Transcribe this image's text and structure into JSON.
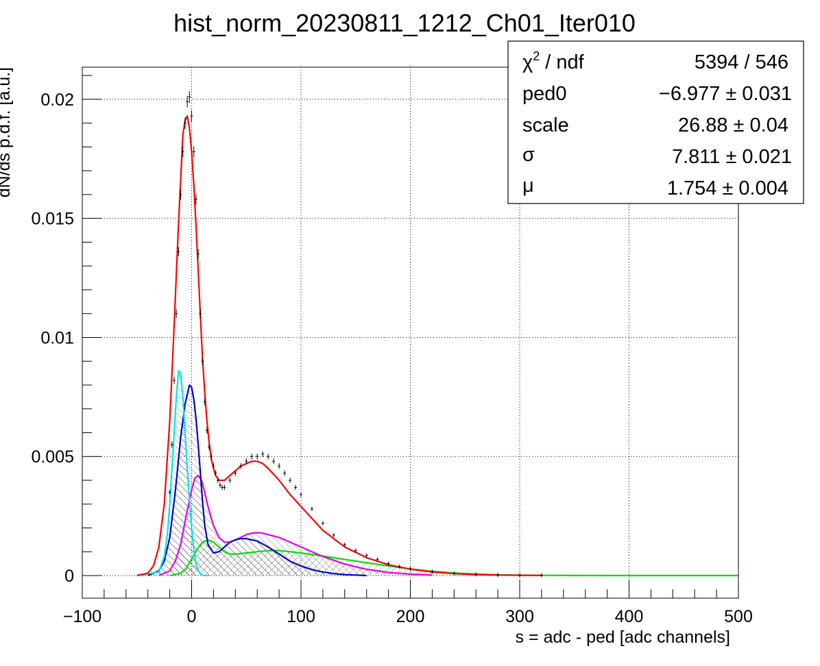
{
  "chart_data": {
    "type": "line",
    "title": "hist_norm_20230811_1212_Ch01_Iter010",
    "xlabel": "s = adc - ped [adc channels]",
    "ylabel": "dN/ds p.d.f. [a.u.]",
    "xlim": [
      -100,
      500
    ],
    "ylim": [
      -0.00095,
      0.02135
    ],
    "xticks": [
      -100,
      0,
      100,
      200,
      300,
      400,
      500
    ],
    "xtick_labels": [
      "−100",
      "0",
      "100",
      "200",
      "300",
      "400",
      "500"
    ],
    "yticks": [
      0,
      0.005,
      0.01,
      0.015,
      0.02
    ],
    "ytick_labels": [
      "0",
      "0.005",
      "0.01",
      "0.015",
      "0.02"
    ],
    "grid": true,
    "stats_box": {
      "placement": "top-right",
      "rows": [
        {
          "name_main": "χ",
          "name_sup": "2",
          "name_tail": " / ndf",
          "value": "5394 / 546"
        },
        {
          "name_main": "ped0",
          "name_sup": "",
          "name_tail": "",
          "value": "−6.977 ± 0.031"
        },
        {
          "name_main": "scale",
          "name_sup": "",
          "name_tail": "",
          "value": "26.88 ± 0.04"
        },
        {
          "name_main": "σ",
          "name_sup": "",
          "name_tail": "",
          "value": "7.811 ± 0.021"
        },
        {
          "name_main": "μ",
          "name_sup": "",
          "name_tail": "",
          "value": "1.754 ± 0.004"
        }
      ]
    },
    "data_points": {
      "color": "#000000",
      "x": [
        -20,
        -18,
        -16,
        -14,
        -12,
        -10,
        -8,
        -6,
        -4,
        -2,
        0,
        2,
        4,
        6,
        8,
        10,
        12,
        14,
        16,
        18,
        20,
        22,
        24,
        26,
        28,
        30,
        35,
        40,
        45,
        50,
        55,
        60,
        65,
        70,
        75,
        80,
        85,
        90,
        95,
        100,
        110,
        120,
        130,
        140,
        150,
        160,
        170,
        180,
        190,
        200,
        220,
        240,
        260,
        280,
        300,
        320
      ],
      "y": [
        0.0035,
        0.0055,
        0.0082,
        0.011,
        0.0136,
        0.016,
        0.0178,
        0.019,
        0.0199,
        0.0201,
        0.0193,
        0.0178,
        0.0158,
        0.0135,
        0.011,
        0.009,
        0.0073,
        0.0061,
        0.0054,
        0.005,
        0.0046,
        0.0043,
        0.004,
        0.0038,
        0.0037,
        0.0037,
        0.004,
        0.0043,
        0.0046,
        0.0048,
        0.005,
        0.005,
        0.0051,
        0.005,
        0.0048,
        0.0046,
        0.0043,
        0.004,
        0.0037,
        0.0034,
        0.0028,
        0.0022,
        0.0017,
        0.0013,
        0.00105,
        0.00085,
        0.00068,
        0.0005,
        0.00038,
        0.00028,
        0.00016,
        9e-05,
        5e-05,
        3e-05,
        2e-05,
        1e-05
      ]
    },
    "series": [
      {
        "color": "#ff0000",
        "hatch": false,
        "x": [
          -50,
          -40,
          -35,
          -30,
          -25,
          -20,
          -16,
          -12,
          -8,
          -6,
          -4,
          -2,
          0,
          2,
          4,
          6,
          8,
          10,
          12,
          14,
          16,
          18,
          20,
          22,
          25,
          28,
          30,
          35,
          40,
          45,
          50,
          55,
          60,
          65,
          70,
          80,
          90,
          100,
          110,
          120,
          140,
          160,
          180,
          200,
          220,
          240,
          260,
          280,
          300,
          320
        ],
        "y": [
          0,
          0.0001,
          0.0004,
          0.0012,
          0.003,
          0.0065,
          0.0105,
          0.0148,
          0.0185,
          0.0191,
          0.0193,
          0.0188,
          0.0178,
          0.0164,
          0.0147,
          0.0128,
          0.0109,
          0.0091,
          0.0077,
          0.0065,
          0.0056,
          0.0049,
          0.0045,
          0.0042,
          0.004,
          0.004,
          0.004,
          0.0042,
          0.0044,
          0.0046,
          0.0047,
          0.0048,
          0.0048,
          0.0047,
          0.0045,
          0.004,
          0.0034,
          0.0029,
          0.0024,
          0.0019,
          0.0012,
          0.00075,
          0.00045,
          0.00027,
          0.00015,
          8e-05,
          4e-05,
          2e-05,
          1e-05,
          5e-06
        ]
      },
      {
        "color": "#00e5e5",
        "hatch": true,
        "x": [
          -50,
          -30,
          -25,
          -22,
          -20,
          -18,
          -16,
          -14,
          -12,
          -10,
          -8,
          -6,
          -4,
          -2,
          0,
          2,
          4,
          6,
          8,
          10,
          12,
          15
        ],
        "y": [
          0,
          0.00015,
          0.0008,
          0.0018,
          0.003,
          0.0045,
          0.006,
          0.0075,
          0.0086,
          0.0085,
          0.0075,
          0.006,
          0.0045,
          0.0032,
          0.002,
          0.0011,
          0.0005,
          0.0002,
          8e-05,
          3e-05,
          0,
          0
        ]
      },
      {
        "color": "#0000cc",
        "hatch": true,
        "x": [
          -40,
          -30,
          -25,
          -20,
          -15,
          -10,
          -6,
          -2,
          0,
          2,
          4,
          6,
          8,
          10,
          12,
          15,
          20,
          25,
          30,
          35,
          40,
          45,
          50,
          55,
          60,
          70,
          80,
          90,
          100,
          110,
          120,
          130,
          140,
          150,
          160
        ],
        "y": [
          0,
          0.0002,
          0.0006,
          0.0016,
          0.0035,
          0.0058,
          0.0072,
          0.008,
          0.0079,
          0.0074,
          0.0066,
          0.0055,
          0.0043,
          0.0031,
          0.0021,
          0.0013,
          0.00095,
          0.001,
          0.0012,
          0.0014,
          0.0015,
          0.00155,
          0.00155,
          0.0015,
          0.00145,
          0.0012,
          0.0009,
          0.0006,
          0.0004,
          0.00025,
          0.00015,
          8e-05,
          4e-05,
          2e-05,
          0
        ]
      },
      {
        "color": "#e500e5",
        "hatch": true,
        "x": [
          -30,
          -20,
          -15,
          -10,
          -5,
          0,
          3,
          6,
          9,
          12,
          15,
          18,
          20,
          25,
          30,
          35,
          40,
          45,
          50,
          55,
          60,
          65,
          70,
          80,
          90,
          100,
          110,
          120,
          140,
          160,
          180,
          200,
          220
        ],
        "y": [
          0,
          0.0002,
          0.0006,
          0.0013,
          0.0025,
          0.0036,
          0.0041,
          0.0042,
          0.004,
          0.0035,
          0.0029,
          0.0024,
          0.0021,
          0.0016,
          0.0014,
          0.0014,
          0.0015,
          0.0016,
          0.00172,
          0.00178,
          0.0018,
          0.00178,
          0.00172,
          0.0016,
          0.0014,
          0.0012,
          0.001,
          0.0008,
          0.00048,
          0.00026,
          0.00013,
          6e-05,
          2e-05
        ]
      },
      {
        "color": "#00dd00",
        "hatch": true,
        "x": [
          -20,
          -10,
          -5,
          0,
          5,
          10,
          15,
          20,
          25,
          30,
          35,
          40,
          50,
          60,
          70,
          80,
          90,
          100,
          120,
          140,
          160,
          180,
          200,
          220,
          240,
          260,
          280,
          300,
          320,
          350,
          400,
          450,
          500
        ],
        "y": [
          0,
          0.0001,
          0.0003,
          0.0007,
          0.0011,
          0.0014,
          0.0015,
          0.0014,
          0.0012,
          0.001,
          0.0009,
          0.0009,
          0.00095,
          0.001,
          0.00105,
          0.00105,
          0.001,
          0.00095,
          0.00082,
          0.00068,
          0.00054,
          0.0004,
          0.00028,
          0.00018,
          0.00011,
          6e-05,
          3e-05,
          1.5e-05,
          8e-06,
          3e-06,
          0,
          0,
          0
        ]
      }
    ]
  }
}
